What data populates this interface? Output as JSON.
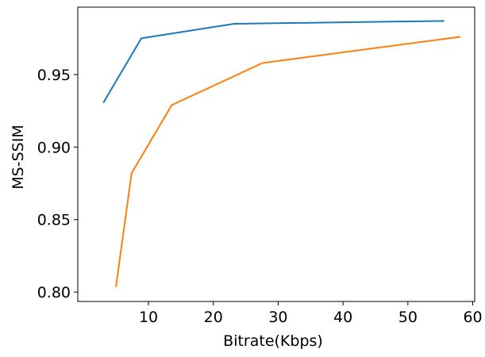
{
  "chart_data": {
    "type": "line",
    "title": "",
    "xlabel": "Bitrate(Kbps)",
    "ylabel": "MS-SSIM",
    "xlim": [
      -0.9,
      60.3
    ],
    "ylim": [
      0.7935,
      0.9965
    ],
    "xticks": [
      10,
      20,
      30,
      40,
      50,
      60
    ],
    "yticks": [
      0.8,
      0.85,
      0.9,
      0.95
    ],
    "xtick_labels": [
      "10",
      "20",
      "30",
      "40",
      "50",
      "60"
    ],
    "ytick_labels": [
      "0.80",
      "0.85",
      "0.90",
      "0.95"
    ],
    "grid": false,
    "legend": null,
    "series": [
      {
        "color": "#1f77b4",
        "points": [
          {
            "x": 3.1,
            "y": 0.931
          },
          {
            "x": 8.9,
            "y": 0.975
          },
          {
            "x": 23.2,
            "y": 0.985
          },
          {
            "x": 55.5,
            "y": 0.987
          }
        ]
      },
      {
        "color": "#ff7f0e",
        "points": [
          {
            "x": 5.0,
            "y": 0.804
          },
          {
            "x": 7.4,
            "y": 0.882
          },
          {
            "x": 13.6,
            "y": 0.929
          },
          {
            "x": 27.6,
            "y": 0.958
          },
          {
            "x": 58.0,
            "y": 0.976
          }
        ]
      }
    ]
  }
}
